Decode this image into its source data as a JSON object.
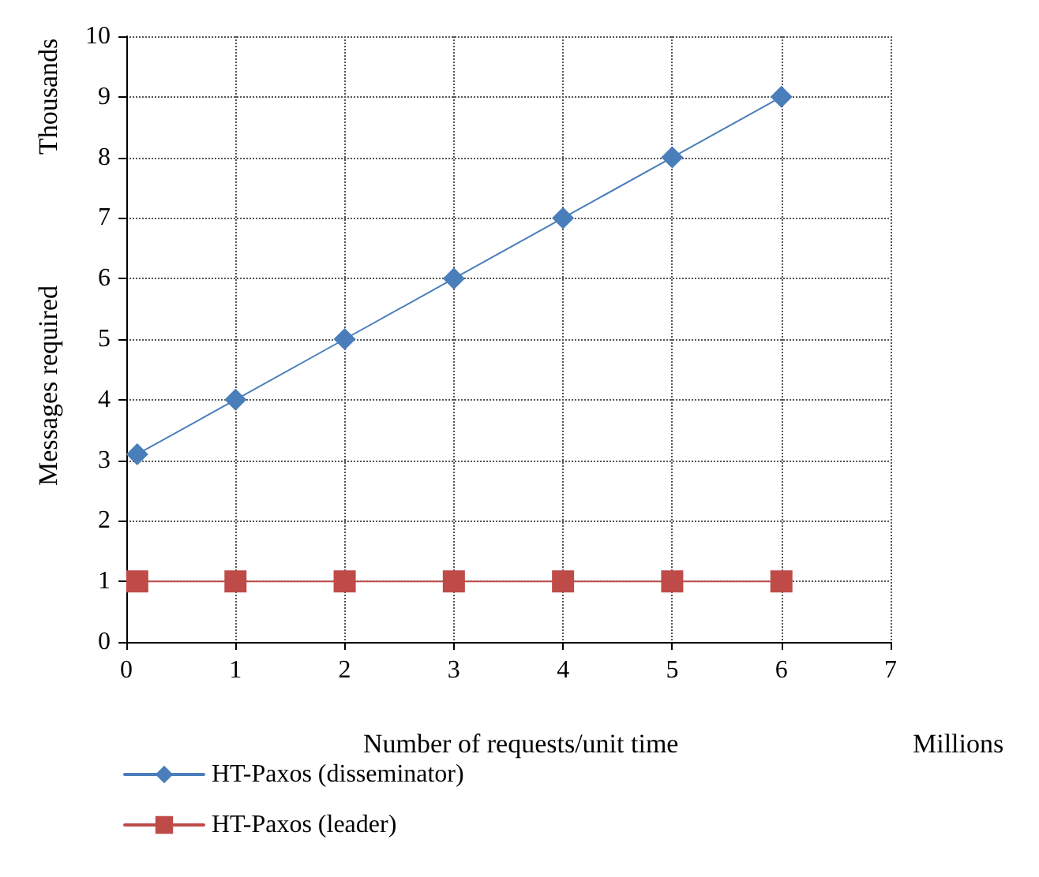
{
  "chart_data": {
    "type": "line",
    "xlabel": "Number of requests/unit time",
    "ylabel": "Messages required",
    "annotations": [
      "Thousands",
      "Millions"
    ],
    "x": [
      0.1,
      1,
      2,
      3,
      4,
      5,
      6
    ],
    "series": [
      {
        "name": "HT-Paxos (disseminator)",
        "color": "#4a7ebb",
        "marker": "diamond",
        "values": [
          3.1,
          4,
          5,
          6,
          7,
          8,
          9
        ]
      },
      {
        "name": "HT-Paxos (leader)",
        "color": "#be4b48",
        "marker": "square",
        "values": [
          1,
          1,
          1,
          1,
          1,
          1,
          1
        ]
      }
    ],
    "xlim": [
      0,
      7
    ],
    "xticks": [
      0,
      1,
      2,
      3,
      4,
      5,
      6,
      7
    ],
    "ylim": [
      0,
      10
    ],
    "yticks": [
      0,
      1,
      2,
      3,
      4,
      5,
      6,
      7,
      8,
      9,
      10
    ],
    "grid": true,
    "legend": "bottom left",
    "line_style": "solid"
  }
}
